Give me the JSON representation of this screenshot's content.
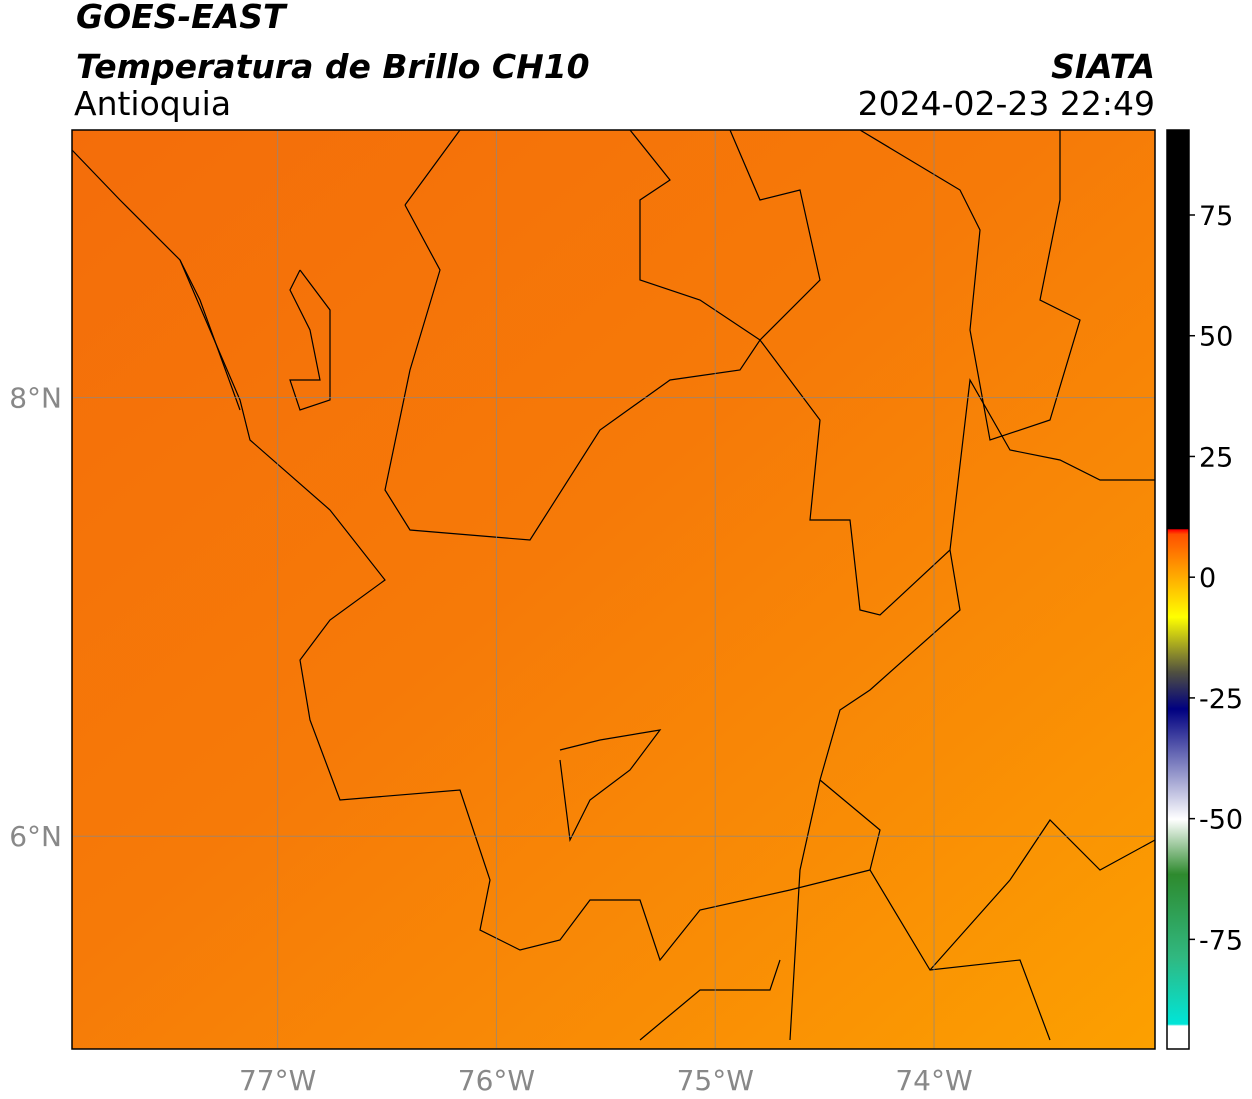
{
  "header": {
    "title": "GOES-EAST",
    "subtitle": "Temperatura de Brillo CH10",
    "region": "Antioquia",
    "source": "SIATA",
    "datetime": "2024-02-23 22:49"
  },
  "map": {
    "xlim": [
      -77.94,
      -72.99
    ],
    "ylim": [
      5.03,
      9.22
    ],
    "xticks": [
      {
        "value": -77,
        "label": "77°W"
      },
      {
        "value": -76,
        "label": "76°W"
      },
      {
        "value": -75,
        "label": "75°W"
      },
      {
        "value": -74,
        "label": "74°W"
      }
    ],
    "yticks": [
      {
        "value": 8,
        "label": "8°N"
      },
      {
        "value": 6,
        "label": "6°N"
      }
    ],
    "grid": true
  },
  "colorbar": {
    "clim": [
      -97.7,
      92.6
    ],
    "ticks": [
      75,
      50,
      25,
      0,
      -25,
      -50,
      -75
    ]
  }
}
